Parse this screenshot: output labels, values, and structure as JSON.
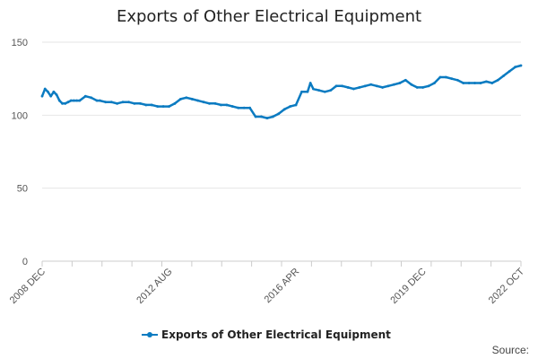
{
  "chart_data": {
    "type": "line",
    "title": "Exports of Other Electrical Equipment",
    "xlabel": "",
    "ylabel": "",
    "ylim": [
      0,
      150
    ],
    "yticks": [
      "0",
      "50",
      "100",
      "150"
    ],
    "xticks": [
      "2008 DEC",
      "2012 AUG",
      "2016 APR",
      "2019 DEC",
      "2022 OCT"
    ],
    "grid": "horizontal",
    "legend": "bottom-center",
    "color": "#0b7bc1",
    "source_label": "Source:",
    "series": [
      {
        "name": "Exports of Other Electrical Equipment",
        "x": [
          "2008-12",
          "2009-01",
          "2009-02",
          "2009-03",
          "2009-04",
          "2009-05",
          "2009-06",
          "2009-07",
          "2009-08",
          "2009-09",
          "2009-10",
          "2009-11",
          "2009-12",
          "2010-01",
          "2010-03",
          "2010-05",
          "2010-07",
          "2010-08",
          "2010-10",
          "2010-12",
          "2011-02",
          "2011-04",
          "2011-06",
          "2011-08",
          "2011-10",
          "2011-12",
          "2012-02",
          "2012-04",
          "2012-06",
          "2012-08",
          "2012-10",
          "2012-12",
          "2013-02",
          "2013-04",
          "2013-06",
          "2013-08",
          "2013-10",
          "2013-12",
          "2014-02",
          "2014-04",
          "2014-06",
          "2014-08",
          "2014-10",
          "2014-12",
          "2015-02",
          "2015-04",
          "2015-06",
          "2015-08",
          "2015-10",
          "2015-12",
          "2016-02",
          "2016-04",
          "2016-06",
          "2016-08",
          "2016-09",
          "2016-10",
          "2016-12",
          "2017-02",
          "2017-04",
          "2017-06",
          "2017-08",
          "2017-10",
          "2017-12",
          "2018-02",
          "2018-04",
          "2018-06",
          "2018-08",
          "2018-10",
          "2018-12",
          "2019-02",
          "2019-04",
          "2019-06",
          "2019-08",
          "2019-10",
          "2019-12",
          "2020-02",
          "2020-04",
          "2020-06",
          "2020-08",
          "2020-10",
          "2020-12",
          "2021-02",
          "2021-04",
          "2021-06",
          "2021-08",
          "2021-10",
          "2021-12",
          "2022-02",
          "2022-04",
          "2022-06",
          "2022-08",
          "2022-10"
        ],
        "values": [
          113,
          118,
          116,
          113,
          116,
          114,
          110,
          108,
          108,
          109,
          110,
          110,
          110,
          110,
          113,
          112,
          110,
          110,
          109,
          109,
          108,
          109,
          109,
          108,
          108,
          107,
          107,
          106,
          106,
          106,
          108,
          111,
          112,
          111,
          110,
          109,
          108,
          108,
          107,
          107,
          106,
          105,
          105,
          105,
          99,
          99,
          98,
          99,
          101,
          104,
          106,
          107,
          116,
          116,
          122,
          118,
          117,
          116,
          117,
          120,
          120,
          119,
          118,
          119,
          120,
          121,
          120,
          119,
          120,
          121,
          122,
          124,
          121,
          119,
          119,
          120,
          122,
          126,
          126,
          125,
          124,
          122,
          122,
          122,
          122,
          123,
          122,
          124,
          127,
          130,
          133,
          134
        ]
      }
    ]
  }
}
